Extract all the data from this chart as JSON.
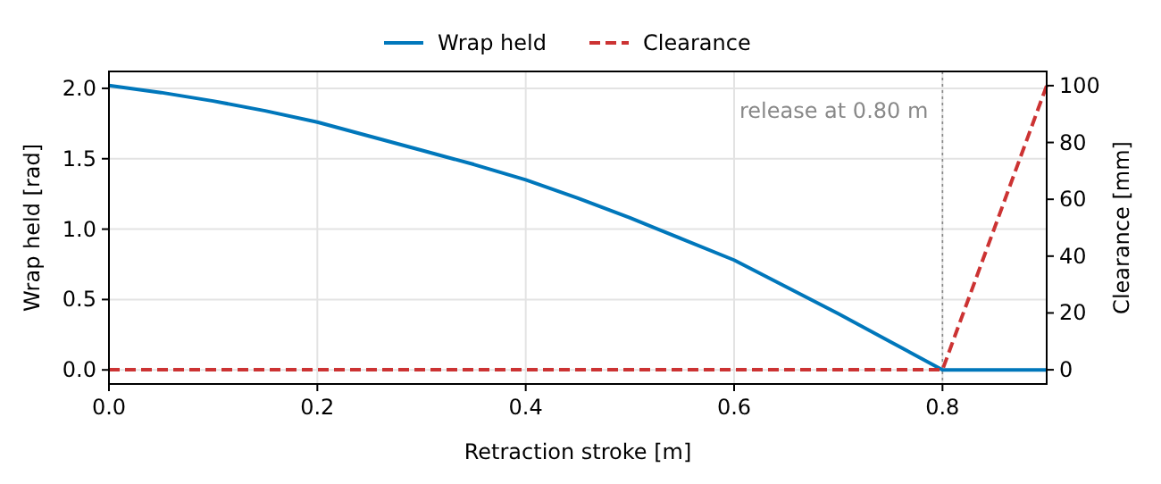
{
  "chart_data": {
    "type": "line",
    "xlabel": "Retraction stroke [m]",
    "ylabel": "Wrap held [rad]",
    "y2label": "Clearance [mm]",
    "xlim": [
      0,
      0.9
    ],
    "xticks": [
      {
        "value": 0,
        "label": "0.0"
      },
      0.2,
      0.4,
      0.6,
      0.8
    ],
    "ylim": [
      -0.1,
      2.12
    ],
    "yticks": [
      {
        "value": 0,
        "label": "0.0"
      },
      0.5,
      {
        "value": 1,
        "label": "1.0"
      },
      1.5,
      {
        "value": 2,
        "label": "2.0"
      }
    ],
    "y2lim": [
      -5,
      105
    ],
    "y2ticks": [
      0,
      20,
      40,
      60,
      80,
      100
    ],
    "series": [
      {
        "name": "Wrap held",
        "color": "#0077bb",
        "line_style": "solid",
        "x": [
          0,
          0.05,
          0.1,
          0.15,
          0.2,
          0.25,
          0.3,
          0.35,
          0.4,
          0.45,
          0.5,
          0.55,
          0.6,
          0.65,
          0.7,
          0.75,
          0.8,
          0.9
        ],
        "values": [
          2.02,
          1.97,
          1.91,
          1.84,
          1.76,
          1.66,
          1.56,
          1.46,
          1.35,
          1.22,
          1.08,
          0.93,
          0.78,
          0.59,
          0.4,
          0.2,
          0,
          0
        ]
      },
      {
        "name": "Clearance",
        "color": "#cc3333",
        "line_style": "dashed",
        "axis": "y2",
        "x": [
          0,
          0.8,
          0.9
        ],
        "values": [
          0,
          0,
          100
        ]
      }
    ],
    "ref_lines": [
      {
        "axis": "x",
        "value": 0.8,
        "label": "release at 0.80 m",
        "color": "#888888",
        "line_style": "dotted"
      }
    ],
    "grid": true,
    "legend": "top"
  }
}
